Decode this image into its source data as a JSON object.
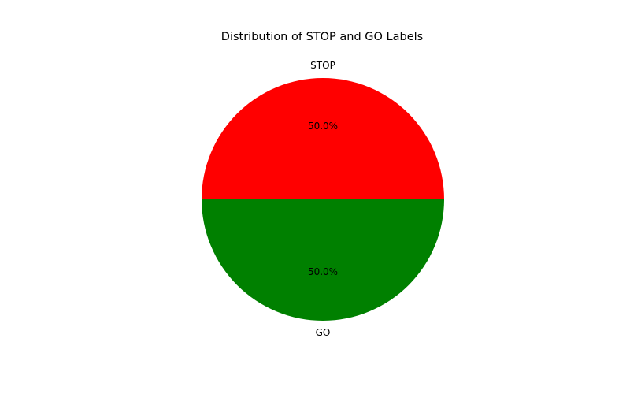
{
  "chart_data": {
    "type": "pie",
    "title": "Distribution of STOP and GO Labels",
    "categories": [
      "STOP",
      "GO"
    ],
    "values": [
      50,
      50
    ],
    "percent_labels": [
      "50.0%",
      "50.0%"
    ],
    "colors": [
      "#ff0000",
      "#008000"
    ],
    "start_angle_deg": 0,
    "direction": "counterclockwise",
    "legend": "none"
  }
}
